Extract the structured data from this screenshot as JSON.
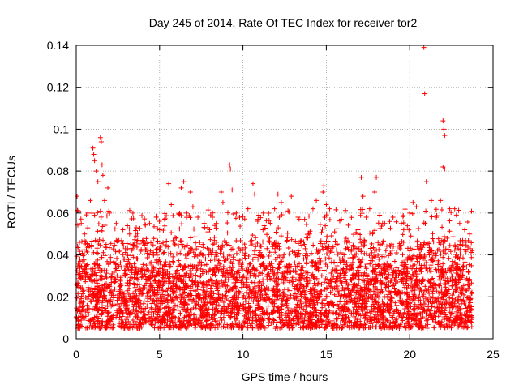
{
  "chart_data": {
    "type": "scatter",
    "title": "Day 245 of 2014, Rate Of TEC Index for receiver tor2",
    "xlabel": "GPS time / hours",
    "ylabel": "ROTI / TECUs",
    "xlim": [
      0,
      25
    ],
    "ylim": [
      0,
      0.14
    ],
    "x_ticks": [
      0,
      5,
      10,
      15,
      20,
      25
    ],
    "y_ticks": [
      0,
      0.02,
      0.04,
      0.06,
      0.08,
      0.1,
      0.12,
      0.14
    ],
    "x_tick_labels": [
      "0",
      "5",
      "10",
      "15",
      "20",
      "25"
    ],
    "y_tick_labels": [
      "0",
      "0.02",
      "0.04",
      "0.06",
      "0.08",
      "0.1",
      "0.12",
      "0.14"
    ],
    "grid": true,
    "marker": "+",
    "marker_color": "#ff0000",
    "series": [
      {
        "name": "ROTI",
        "x_range": [
          0,
          23.75
        ],
        "typical_range": [
          0.005,
          0.035
        ],
        "points": [
          [
            0.05,
            0.068
          ],
          [
            0.15,
            0.061
          ],
          [
            0.3,
            0.055
          ],
          [
            0.5,
            0.05
          ],
          [
            0.7,
            0.06
          ],
          [
            0.85,
            0.066
          ],
          [
            1.0,
            0.091
          ],
          [
            1.05,
            0.088
          ],
          [
            1.1,
            0.085
          ],
          [
            1.2,
            0.08
          ],
          [
            1.3,
            0.075
          ],
          [
            1.45,
            0.096
          ],
          [
            1.5,
            0.094
          ],
          [
            1.55,
            0.083
          ],
          [
            1.6,
            0.078
          ],
          [
            1.7,
            0.066
          ],
          [
            1.9,
            0.072
          ],
          [
            2.0,
            0.06
          ],
          [
            2.4,
            0.055
          ],
          [
            2.8,
            0.052
          ],
          [
            3.2,
            0.05
          ],
          [
            3.4,
            0.06
          ],
          [
            3.6,
            0.053
          ],
          [
            4.0,
            0.047
          ],
          [
            4.4,
            0.055
          ],
          [
            4.8,
            0.058
          ],
          [
            5.0,
            0.052
          ],
          [
            5.3,
            0.057
          ],
          [
            5.55,
            0.074
          ],
          [
            5.7,
            0.064
          ],
          [
            6.0,
            0.048
          ],
          [
            6.2,
            0.06
          ],
          [
            6.3,
            0.072
          ],
          [
            6.45,
            0.075
          ],
          [
            6.6,
            0.06
          ],
          [
            6.85,
            0.07
          ],
          [
            7.0,
            0.063
          ],
          [
            7.3,
            0.058
          ],
          [
            7.6,
            0.045
          ],
          [
            8.0,
            0.052
          ],
          [
            8.4,
            0.055
          ],
          [
            8.7,
            0.07
          ],
          [
            8.8,
            0.065
          ],
          [
            9.2,
            0.083
          ],
          [
            9.25,
            0.081
          ],
          [
            9.35,
            0.071
          ],
          [
            9.6,
            0.06
          ],
          [
            9.8,
            0.058
          ],
          [
            10.3,
            0.062
          ],
          [
            10.6,
            0.074
          ],
          [
            10.7,
            0.069
          ],
          [
            10.9,
            0.057
          ],
          [
            11.2,
            0.052
          ],
          [
            11.6,
            0.048
          ],
          [
            11.9,
            0.062
          ],
          [
            12.1,
            0.069
          ],
          [
            12.3,
            0.065
          ],
          [
            12.7,
            0.061
          ],
          [
            12.9,
            0.068
          ],
          [
            13.3,
            0.058
          ],
          [
            13.7,
            0.057
          ],
          [
            14.0,
            0.05
          ],
          [
            14.2,
            0.062
          ],
          [
            14.4,
            0.066
          ],
          [
            14.8,
            0.07
          ],
          [
            14.85,
            0.073
          ],
          [
            15.0,
            0.064
          ],
          [
            15.2,
            0.062
          ],
          [
            15.5,
            0.051
          ],
          [
            15.9,
            0.057
          ],
          [
            16.4,
            0.046
          ],
          [
            16.9,
            0.052
          ],
          [
            17.1,
            0.077
          ],
          [
            17.2,
            0.068
          ],
          [
            17.6,
            0.062
          ],
          [
            17.9,
            0.07
          ],
          [
            18.0,
            0.077
          ],
          [
            18.2,
            0.059
          ],
          [
            18.5,
            0.055
          ],
          [
            18.8,
            0.056
          ],
          [
            19.0,
            0.058
          ],
          [
            19.5,
            0.055
          ],
          [
            20.0,
            0.06
          ],
          [
            20.2,
            0.065
          ],
          [
            20.4,
            0.063
          ],
          [
            20.85,
            0.139
          ],
          [
            20.9,
            0.117
          ],
          [
            21.0,
            0.075
          ],
          [
            21.3,
            0.066
          ],
          [
            21.6,
            0.058
          ],
          [
            21.85,
            0.066
          ],
          [
            22.0,
            0.104
          ],
          [
            22.05,
            0.1
          ],
          [
            22.1,
            0.097
          ],
          [
            22.0,
            0.082
          ],
          [
            22.1,
            0.081
          ],
          [
            22.4,
            0.062
          ],
          [
            22.7,
            0.062
          ],
          [
            23.0,
            0.055
          ],
          [
            23.3,
            0.052
          ],
          [
            23.6,
            0.05
          ]
        ]
      }
    ]
  }
}
